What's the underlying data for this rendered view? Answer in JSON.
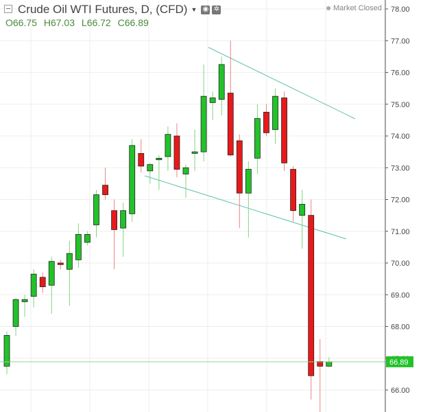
{
  "header": {
    "title": "Crude Oil WTI Futures, D, (CFD)",
    "settings_icon": "settings-icon",
    "gear_icon": "gear-icon",
    "collapse_icon": "collapse-icon"
  },
  "ohlc": {
    "open_label": "O",
    "open": "66.75",
    "high_label": "H",
    "high": "67.03",
    "low_label": "L",
    "low": "66.72",
    "close_label": "C",
    "close": "66.89"
  },
  "status": {
    "text": "Market Closed"
  },
  "colors": {
    "up": "#22c22a",
    "down": "#e8191a",
    "trendline": "#5fbfb0",
    "last_price_line": "#8fd48f",
    "last_price_badge": "#22c22a",
    "grid": "#eeeeee"
  },
  "chart_data": {
    "type": "candlestick",
    "ylim": [
      65.3,
      78.2
    ],
    "y_ticks": [
      "66.00",
      "67.00",
      "68.00",
      "69.00",
      "70.00",
      "71.00",
      "72.00",
      "73.00",
      "74.00",
      "75.00",
      "76.00",
      "77.00",
      "78.00"
    ],
    "last_price": "66.89",
    "grid": true,
    "candles": [
      {
        "o": 66.75,
        "h": 67.85,
        "l": 66.5,
        "c": 67.72
      },
      {
        "o": 68.0,
        "h": 68.9,
        "l": 67.7,
        "c": 68.85
      },
      {
        "o": 68.78,
        "h": 69.0,
        "l": 68.3,
        "c": 68.85
      },
      {
        "o": 68.95,
        "h": 69.8,
        "l": 68.6,
        "c": 69.65
      },
      {
        "o": 69.55,
        "h": 69.7,
        "l": 69.05,
        "c": 69.25
      },
      {
        "o": 69.3,
        "h": 70.2,
        "l": 68.4,
        "c": 70.05
      },
      {
        "o": 70.0,
        "h": 70.1,
        "l": 69.8,
        "c": 69.95
      },
      {
        "o": 69.8,
        "h": 70.7,
        "l": 68.65,
        "c": 70.3
      },
      {
        "o": 70.1,
        "h": 71.25,
        "l": 69.85,
        "c": 70.9
      },
      {
        "o": 70.65,
        "h": 71.0,
        "l": 70.55,
        "c": 70.9
      },
      {
        "o": 71.2,
        "h": 72.3,
        "l": 70.8,
        "c": 72.15
      },
      {
        "o": 72.45,
        "h": 73.0,
        "l": 72.0,
        "c": 72.15
      },
      {
        "o": 71.65,
        "h": 72.0,
        "l": 69.8,
        "c": 71.05
      },
      {
        "o": 71.1,
        "h": 71.9,
        "l": 70.2,
        "c": 71.65
      },
      {
        "o": 71.55,
        "h": 73.9,
        "l": 71.3,
        "c": 73.7
      },
      {
        "o": 73.45,
        "h": 73.9,
        "l": 72.85,
        "c": 73.05
      },
      {
        "o": 72.9,
        "h": 73.15,
        "l": 72.5,
        "c": 73.1
      },
      {
        "o": 73.25,
        "h": 73.4,
        "l": 72.3,
        "c": 73.3
      },
      {
        "o": 73.35,
        "h": 74.3,
        "l": 72.9,
        "c": 74.05
      },
      {
        "o": 74.0,
        "h": 74.4,
        "l": 72.7,
        "c": 72.95
      },
      {
        "o": 72.8,
        "h": 73.1,
        "l": 72.05,
        "c": 73.0
      },
      {
        "o": 73.45,
        "h": 74.2,
        "l": 72.9,
        "c": 73.5
      },
      {
        "o": 73.5,
        "h": 76.25,
        "l": 73.2,
        "c": 75.25
      },
      {
        "o": 75.05,
        "h": 75.4,
        "l": 74.5,
        "c": 75.2
      },
      {
        "o": 75.15,
        "h": 76.5,
        "l": 74.65,
        "c": 76.25
      },
      {
        "o": 75.35,
        "h": 77.0,
        "l": 73.35,
        "c": 73.4
      },
      {
        "o": 73.85,
        "h": 74.05,
        "l": 71.1,
        "c": 72.2
      },
      {
        "o": 72.2,
        "h": 73.2,
        "l": 70.8,
        "c": 72.95
      },
      {
        "o": 73.3,
        "h": 75.0,
        "l": 72.8,
        "c": 74.55
      },
      {
        "o": 74.75,
        "h": 75.0,
        "l": 74.0,
        "c": 74.1
      },
      {
        "o": 74.2,
        "h": 75.5,
        "l": 73.75,
        "c": 75.25
      },
      {
        "o": 75.2,
        "h": 75.4,
        "l": 72.9,
        "c": 73.15
      },
      {
        "o": 72.95,
        "h": 73.05,
        "l": 71.3,
        "c": 71.65
      },
      {
        "o": 71.5,
        "h": 72.3,
        "l": 70.45,
        "c": 71.85
      },
      {
        "o": 71.5,
        "h": 72.0,
        "l": 65.7,
        "c": 66.45
      },
      {
        "o": 66.9,
        "h": 67.6,
        "l": 65.3,
        "c": 66.75
      },
      {
        "o": 66.75,
        "h": 67.03,
        "l": 66.72,
        "c": 66.89
      }
    ]
  }
}
